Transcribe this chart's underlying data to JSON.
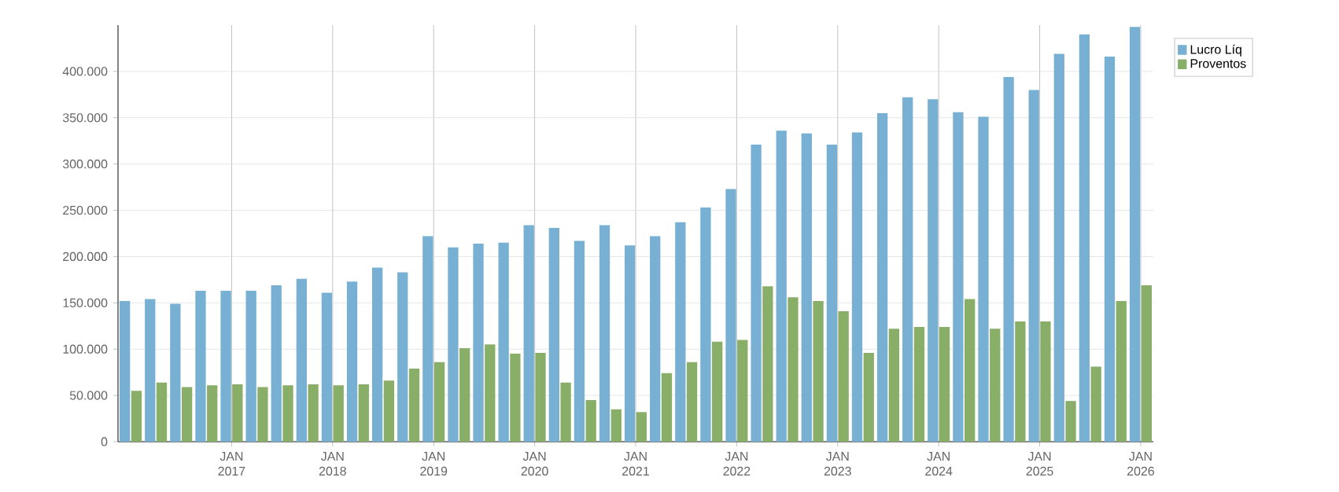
{
  "chart_data": {
    "type": "bar",
    "categories": [
      null,
      null,
      null,
      null,
      "JAN 2017",
      null,
      null,
      null,
      "JAN 2018",
      null,
      null,
      null,
      "JAN 2019",
      null,
      null,
      null,
      "JAN 2020",
      null,
      null,
      null,
      "JAN 2021",
      null,
      null,
      null,
      "JAN 2022",
      null,
      null,
      null,
      "JAN 2023",
      null,
      null,
      null,
      "JAN 2024",
      null,
      null,
      null,
      "JAN 2025",
      null,
      null,
      null,
      "JAN 2026"
    ],
    "series": [
      {
        "name": "Lucro Líq",
        "color": "#77b0d2",
        "values": [
          152000,
          154000,
          149000,
          163000,
          163000,
          163000,
          169000,
          176000,
          161000,
          173000,
          188000,
          183000,
          222000,
          210000,
          214000,
          215000,
          234000,
          231000,
          217000,
          234000,
          212000,
          222000,
          237000,
          253000,
          273000,
          321000,
          336000,
          333000,
          321000,
          334000,
          355000,
          372000,
          370000,
          356000,
          351000,
          394000,
          380000,
          419000,
          440000,
          416000,
          448000
        ]
      },
      {
        "name": "Proventos",
        "color": "#88ae68",
        "values": [
          55000,
          64000,
          59000,
          61000,
          62000,
          59000,
          61000,
          62000,
          61000,
          62000,
          66000,
          79000,
          86000,
          101000,
          105000,
          95000,
          96000,
          64000,
          45000,
          35000,
          32000,
          74000,
          86000,
          108000,
          110000,
          168000,
          156000,
          152000,
          141000,
          96000,
          122000,
          124000,
          124000,
          154000,
          122000,
          130000,
          130000,
          44000,
          81000,
          152000,
          169000
        ]
      }
    ],
    "ylim": [
      0,
      450000
    ],
    "yticks": [
      0,
      {
        "value": 50000,
        "label": "50.000"
      },
      {
        "value": 100000,
        "label": "100.000"
      },
      {
        "value": 150000,
        "label": "150.000"
      },
      {
        "value": 200000,
        "label": "200.000"
      },
      {
        "value": 250000,
        "label": "250.000"
      },
      {
        "value": 300000,
        "label": "300.000"
      },
      {
        "value": 350000,
        "label": "350.000"
      },
      {
        "value": 400000,
        "label": "400.000"
      }
    ],
    "grid": true,
    "legend": "top right"
  }
}
